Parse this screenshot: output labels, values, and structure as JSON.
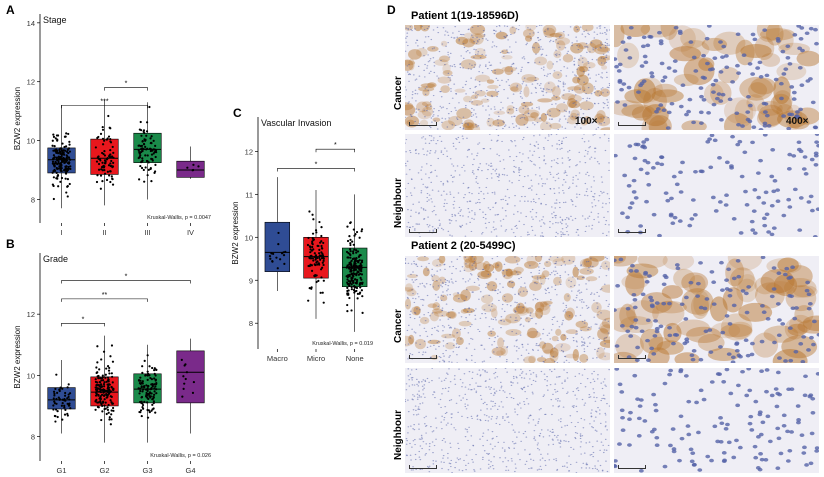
{
  "panels": {
    "a": "A",
    "b": "B",
    "c": "C",
    "d": "D"
  },
  "chart_data": [
    {
      "id": "A",
      "type": "box",
      "title": "Stage",
      "ylabel": "BZW2 expression",
      "ylim": [
        7.2,
        14.3
      ],
      "yticks": [
        8,
        10,
        12,
        14
      ],
      "categories": [
        "I",
        "II",
        "III",
        "IV"
      ],
      "colors": [
        "#2f4c94",
        "#e8171d",
        "#1a8a4a",
        "#7a2a8a"
      ],
      "boxes": [
        {
          "q1": 8.9,
          "median": 9.35,
          "q3": 9.75,
          "whisker_low": 7.7,
          "whisker_high": 11.2,
          "n": 170
        },
        {
          "q1": 8.85,
          "median": 9.4,
          "q3": 10.05,
          "whisker_low": 7.8,
          "whisker_high": 11.4,
          "n": 85
        },
        {
          "q1": 9.25,
          "median": 9.7,
          "q3": 10.25,
          "whisker_low": 8.0,
          "whisker_high": 11.3,
          "n": 85
        },
        {
          "q1": 8.75,
          "median": 9.0,
          "q3": 9.3,
          "whisker_low": 8.7,
          "whisker_high": 9.8,
          "n": 5
        }
      ],
      "brackets": [
        {
          "from": 1,
          "to": 2,
          "y": 11.8,
          "label": "*"
        },
        {
          "from": 0,
          "to": 2,
          "y": 11.2,
          "label": "***"
        }
      ],
      "annotation": "Kruskal-Wallis, p = 0.0047"
    },
    {
      "id": "B",
      "type": "box",
      "title": "Grade",
      "ylabel": "BZW2 expression",
      "ylim": [
        7.2,
        14.0
      ],
      "yticks": [
        8,
        10,
        12
      ],
      "categories": [
        "G1",
        "G2",
        "G3",
        "G4"
      ],
      "colors": [
        "#2f4c94",
        "#e8171d",
        "#1a8a4a",
        "#7a2a8a"
      ],
      "boxes": [
        {
          "q1": 8.9,
          "median": 9.2,
          "q3": 9.6,
          "whisker_low": 8.1,
          "whisker_high": 10.5,
          "n": 55
        },
        {
          "q1": 9.0,
          "median": 9.45,
          "q3": 9.95,
          "whisker_low": 7.8,
          "whisker_high": 11.3,
          "n": 160
        },
        {
          "q1": 9.1,
          "median": 9.55,
          "q3": 10.05,
          "whisker_low": 7.8,
          "whisker_high": 11.0,
          "n": 120
        },
        {
          "q1": 9.1,
          "median": 10.1,
          "q3": 10.8,
          "whisker_low": 8.1,
          "whisker_high": 11.2,
          "n": 11
        }
      ],
      "brackets": [
        {
          "from": 0,
          "to": 1,
          "y": 11.7,
          "label": "*"
        },
        {
          "from": 0,
          "to": 2,
          "y": 12.5,
          "label": "**"
        },
        {
          "from": 0,
          "to": 3,
          "y": 13.1,
          "label": "*"
        }
      ],
      "annotation": "Kruskal-Wallis, p = 0.026"
    },
    {
      "id": "C",
      "type": "box",
      "title": "Vascular Invasion",
      "ylabel": "BZW2 expression",
      "ylim": [
        7.4,
        12.8
      ],
      "yticks": [
        8,
        9,
        10,
        11,
        12
      ],
      "categories": [
        "Macro",
        "Micro",
        "None"
      ],
      "colors": [
        "#2f4c94",
        "#e8171d",
        "#1a8a4a"
      ],
      "boxes": [
        {
          "q1": 9.2,
          "median": 9.65,
          "q3": 10.35,
          "whisker_low": 8.75,
          "whisker_high": 11.4,
          "n": 16
        },
        {
          "q1": 9.05,
          "median": 9.55,
          "q3": 10.0,
          "whisker_low": 8.1,
          "whisker_high": 11.1,
          "n": 95
        },
        {
          "q1": 8.85,
          "median": 9.3,
          "q3": 9.75,
          "whisker_low": 7.8,
          "whisker_high": 11.0,
          "n": 200
        }
      ],
      "brackets": [
        {
          "from": 1,
          "to": 2,
          "y": 12.05,
          "label": "*"
        },
        {
          "from": 0,
          "to": 2,
          "y": 11.6,
          "label": "*"
        }
      ],
      "annotation": "Kruskal-Wallis, p = 0.019"
    }
  ],
  "micrographs": {
    "patient1": "Patient 1(19-18596D)",
    "patient2": "Patient 2 (20-5499C)",
    "row_cancer": "Cancer",
    "row_neighbour": "Neighbour",
    "mag_low": "100×",
    "mag_high": "400×"
  },
  "style": {
    "stain_brown": "#b7752e",
    "tissue_bg": "#efeef5",
    "nuclei_blue": "#5563a8"
  }
}
